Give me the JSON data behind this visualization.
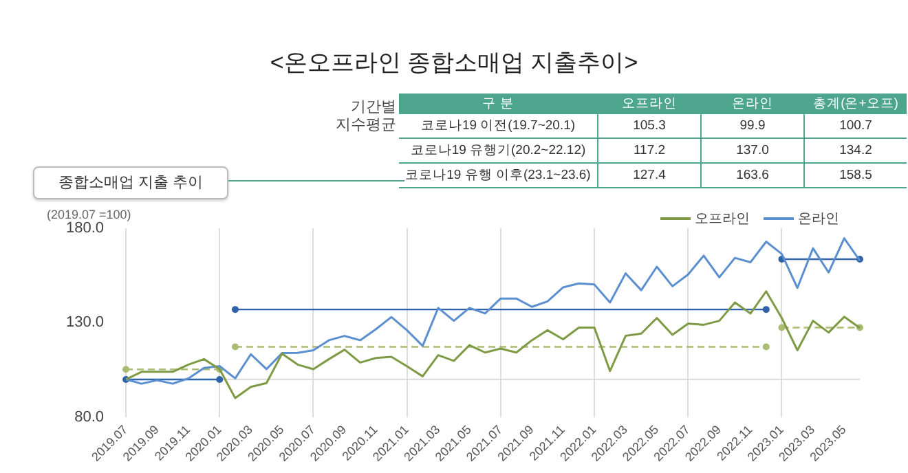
{
  "chart_data": [
    {
      "type": "other",
      "title": "<온오프라인 종합소매업 지출추이>",
      "ylabel": "기간별\n지수평균",
      "xlabel": "구 분",
      "categories": [
        "코로나19 이전(19.7~20.1)",
        "코로나19 유행기(20.2~22.12)",
        "코로나19 유행 이후(23.1~23.6)"
      ],
      "series": [
        {
          "name": "오프라인",
          "values": [
            105.3,
            117.2,
            127.4
          ],
          "value_labels": [
            "105.3",
            "117.2",
            "127.4"
          ]
        },
        {
          "name": "온라인",
          "values": [
            99.9,
            137.0,
            163.6
          ],
          "value_labels": [
            "99.9",
            "137.0",
            "163.6"
          ]
        },
        {
          "name": "총계(온+오프)",
          "values": [
            100.7,
            134.2,
            158.5
          ],
          "value_labels": [
            "100.7",
            "134.2",
            "158.5"
          ]
        }
      ]
    },
    {
      "type": "line",
      "subtitle": "종합소매업 지출 추이",
      "annotations": [
        "(2019.07 =100)"
      ],
      "categories": [
        "2019.07",
        null,
        "2019.09",
        null,
        "2019.11",
        null,
        "2020.01",
        null,
        "2020.03",
        null,
        "2020.05",
        null,
        "2020.07",
        null,
        "2020.09",
        null,
        "2020.11",
        null,
        "2021.01",
        null,
        "2021.03",
        null,
        "2021.05",
        null,
        "2021.07",
        null,
        "2021.09",
        null,
        "2021.11",
        null,
        "2022.01",
        null,
        "2022.03",
        null,
        "2022.05",
        null,
        "2022.07",
        null,
        "2022.09",
        null,
        "2022.11",
        null,
        "2023.01",
        null,
        "2023.03",
        null,
        "2023.05",
        null
      ],
      "series": [
        {
          "name": "오프라인",
          "color": "#7f9a45",
          "line_style": "solid",
          "marker": "none",
          "values": [
            100,
            104,
            104,
            104,
            107.8,
            110.7,
            105.4,
            90.1,
            96,
            98,
            113.6,
            107.8,
            105.4,
            110.7,
            115.7,
            108.9,
            111.3,
            111.9,
            106.9,
            101.6,
            112.8,
            109.8,
            118.1,
            114.2,
            116.3,
            114.2,
            120.7,
            126,
            121.2,
            127.4,
            127.4,
            104.4,
            123,
            124.2,
            132.5,
            123.6,
            129.5,
            128.9,
            131,
            140.7,
            134.9,
            146.6,
            132.5,
            115.4,
            131,
            124.8,
            133.1,
            127.2
          ]
        },
        {
          "name": "온라인",
          "color": "#5b8fd0",
          "line_style": "solid",
          "marker": "none",
          "values": [
            100,
            97.7,
            99.5,
            97.7,
            100.5,
            106,
            107,
            100.5,
            113.3,
            105.4,
            113.9,
            114,
            115.4,
            120.7,
            123,
            120.7,
            126.5,
            133,
            126,
            117.7,
            137.8,
            131,
            137.8,
            134.9,
            142.8,
            142.8,
            138.4,
            141.3,
            148.7,
            150.8,
            150.2,
            140.7,
            156.1,
            147.2,
            159.6,
            149.3,
            155.5,
            165.5,
            154,
            164.3,
            162,
            172.9,
            166.4,
            148.4,
            169.4,
            156.6,
            174.7,
            162.8
          ]
        },
        {
          "color": "#a9bc72",
          "line_style": "dashed",
          "marker": "circle",
          "values": [
            105.3,
            null,
            null,
            null,
            null,
            null,
            105.3,
            null,
            null,
            null,
            null,
            null,
            null,
            null,
            null,
            null,
            null,
            null,
            null,
            null,
            null,
            null,
            null,
            null,
            null,
            null,
            null,
            null,
            null,
            null,
            null,
            null,
            null,
            null,
            null,
            null,
            null,
            null,
            null,
            null,
            null,
            null,
            null,
            null,
            null,
            null,
            null,
            null
          ]
        },
        {
          "color": "#a9bc72",
          "line_style": "dashed",
          "marker": "circle",
          "values": [
            null,
            null,
            null,
            null,
            null,
            null,
            null,
            117.2,
            null,
            null,
            null,
            null,
            null,
            null,
            null,
            null,
            null,
            null,
            null,
            null,
            null,
            null,
            null,
            null,
            null,
            null,
            null,
            null,
            null,
            null,
            null,
            null,
            null,
            null,
            null,
            null,
            null,
            null,
            null,
            null,
            null,
            117.2,
            null,
            null,
            null,
            null,
            null,
            null
          ]
        },
        {
          "color": "#a9bc72",
          "line_style": "dashed",
          "marker": "circle",
          "values": [
            null,
            null,
            null,
            null,
            null,
            null,
            null,
            null,
            null,
            null,
            null,
            null,
            null,
            null,
            null,
            null,
            null,
            null,
            null,
            null,
            null,
            null,
            null,
            null,
            null,
            null,
            null,
            null,
            null,
            null,
            null,
            null,
            null,
            null,
            null,
            null,
            null,
            null,
            null,
            null,
            null,
            null,
            127.4,
            null,
            null,
            null,
            null,
            127.4
          ]
        },
        {
          "color": "#2f62a8",
          "line_style": "solid",
          "marker": "circle",
          "values": [
            99.9,
            null,
            null,
            null,
            null,
            null,
            99.9,
            null,
            null,
            null,
            null,
            null,
            null,
            null,
            null,
            null,
            null,
            null,
            null,
            null,
            null,
            null,
            null,
            null,
            null,
            null,
            null,
            null,
            null,
            null,
            null,
            null,
            null,
            null,
            null,
            null,
            null,
            null,
            null,
            null,
            null,
            null,
            null,
            null,
            null,
            null,
            null,
            null
          ]
        },
        {
          "color": "#2f62a8",
          "line_style": "solid",
          "marker": "circle",
          "values": [
            null,
            null,
            null,
            null,
            null,
            null,
            null,
            137.0,
            null,
            null,
            null,
            null,
            null,
            null,
            null,
            null,
            null,
            null,
            null,
            null,
            null,
            null,
            null,
            null,
            null,
            null,
            null,
            null,
            null,
            null,
            null,
            null,
            null,
            null,
            null,
            null,
            null,
            null,
            null,
            null,
            null,
            137.0,
            null,
            null,
            null,
            null,
            null,
            null
          ]
        },
        {
          "color": "#2f62a8",
          "line_style": "solid",
          "marker": "circle",
          "values": [
            null,
            null,
            null,
            null,
            null,
            null,
            null,
            null,
            null,
            null,
            null,
            null,
            null,
            null,
            null,
            null,
            null,
            null,
            null,
            null,
            null,
            null,
            null,
            null,
            null,
            null,
            null,
            null,
            null,
            null,
            null,
            null,
            null,
            null,
            null,
            null,
            null,
            null,
            null,
            null,
            null,
            null,
            163.6,
            null,
            null,
            null,
            null,
            163.6
          ]
        }
      ],
      "ylim": [
        80,
        180
      ],
      "yticks": [
        {
          "value": 80,
          "label": "80.0"
        },
        {
          "value": 130,
          "label": "130.0"
        },
        {
          "value": 180,
          "label": "180.0"
        }
      ],
      "ref_lines": [
        {
          "axis": "y",
          "value": 100,
          "color": "#d9d9d9"
        }
      ],
      "grid": "x",
      "legend": "top right"
    }
  ]
}
